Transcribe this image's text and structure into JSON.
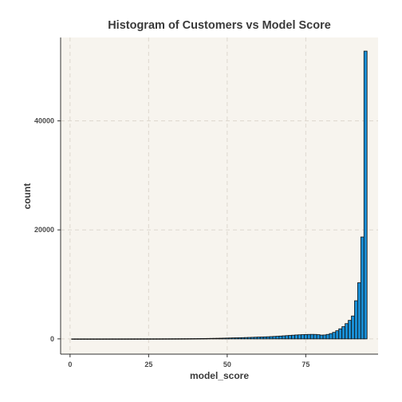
{
  "chart_data": {
    "type": "bar",
    "title": "Histogram of Customers vs Model Score",
    "xlabel": "model_score",
    "ylabel": "count",
    "xlim": [
      -3,
      98
    ],
    "ylim": [
      -2800,
      55300
    ],
    "xticks": [
      0,
      25,
      50,
      75
    ],
    "yticks": [
      0,
      20000,
      40000
    ],
    "grid": true,
    "bar_fill": "#1a8fd6",
    "bar_stroke": "#111111",
    "panel_background": "#f7f4ee",
    "grid_color": "#ded8cf",
    "bin_width": 1,
    "bins": [
      1,
      2,
      3,
      4,
      5,
      6,
      7,
      8,
      9,
      10,
      11,
      12,
      13,
      14,
      15,
      16,
      17,
      18,
      19,
      20,
      21,
      22,
      23,
      24,
      25,
      26,
      27,
      28,
      29,
      30,
      31,
      32,
      33,
      34,
      35,
      36,
      37,
      38,
      39,
      40,
      41,
      42,
      43,
      44,
      45,
      46,
      47,
      48,
      49,
      50,
      51,
      52,
      53,
      54,
      55,
      56,
      57,
      58,
      59,
      60,
      61,
      62,
      63,
      64,
      65,
      66,
      67,
      68,
      69,
      70,
      71,
      72,
      73,
      74,
      75,
      76,
      77,
      78,
      79,
      80,
      81,
      82,
      83,
      84,
      85,
      86,
      87,
      88,
      89,
      90,
      91,
      92,
      93,
      94
    ],
    "values": [
      5,
      5,
      5,
      5,
      5,
      5,
      5,
      6,
      6,
      6,
      7,
      7,
      8,
      8,
      9,
      9,
      10,
      10,
      11,
      12,
      13,
      14,
      15,
      16,
      17,
      18,
      19,
      20,
      22,
      24,
      26,
      28,
      30,
      32,
      35,
      38,
      41,
      45,
      49,
      54,
      60,
      66,
      72,
      80,
      90,
      100,
      112,
      125,
      140,
      155,
      170,
      185,
      200,
      215,
      230,
      250,
      270,
      290,
      310,
      330,
      350,
      370,
      390,
      420,
      450,
      480,
      520,
      560,
      600,
      640,
      680,
      720,
      750,
      780,
      800,
      820,
      830,
      820,
      780,
      700,
      720,
      820,
      980,
      1200,
      1500,
      1850,
      2250,
      2800,
      3400,
      4200,
      7000,
      10300,
      18700,
      52800
    ]
  }
}
